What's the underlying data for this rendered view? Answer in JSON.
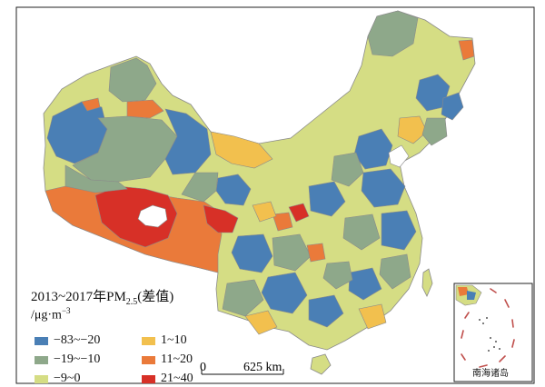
{
  "legend": {
    "title_prefix": "2013~2017年PM",
    "title_sub": "2.5",
    "title_suffix": "(差值)",
    "unit_prefix": "/μg·m",
    "unit_sup": "−3",
    "classes": [
      {
        "label": "−83~−20",
        "color": "#4a7fb5"
      },
      {
        "label": "1~10",
        "color": "#f2c04e"
      },
      {
        "label": "−19~−10",
        "color": "#8ea88a"
      },
      {
        "label": "11~20",
        "color": "#ea7a3a"
      },
      {
        "label": "−9~0",
        "color": "#d5dd84"
      },
      {
        "label": "21~40",
        "color": "#d73027"
      }
    ]
  },
  "scale_bar": {
    "start_label": "0",
    "end_label": "625 km"
  },
  "inset": {
    "label": "南海诸岛"
  }
}
